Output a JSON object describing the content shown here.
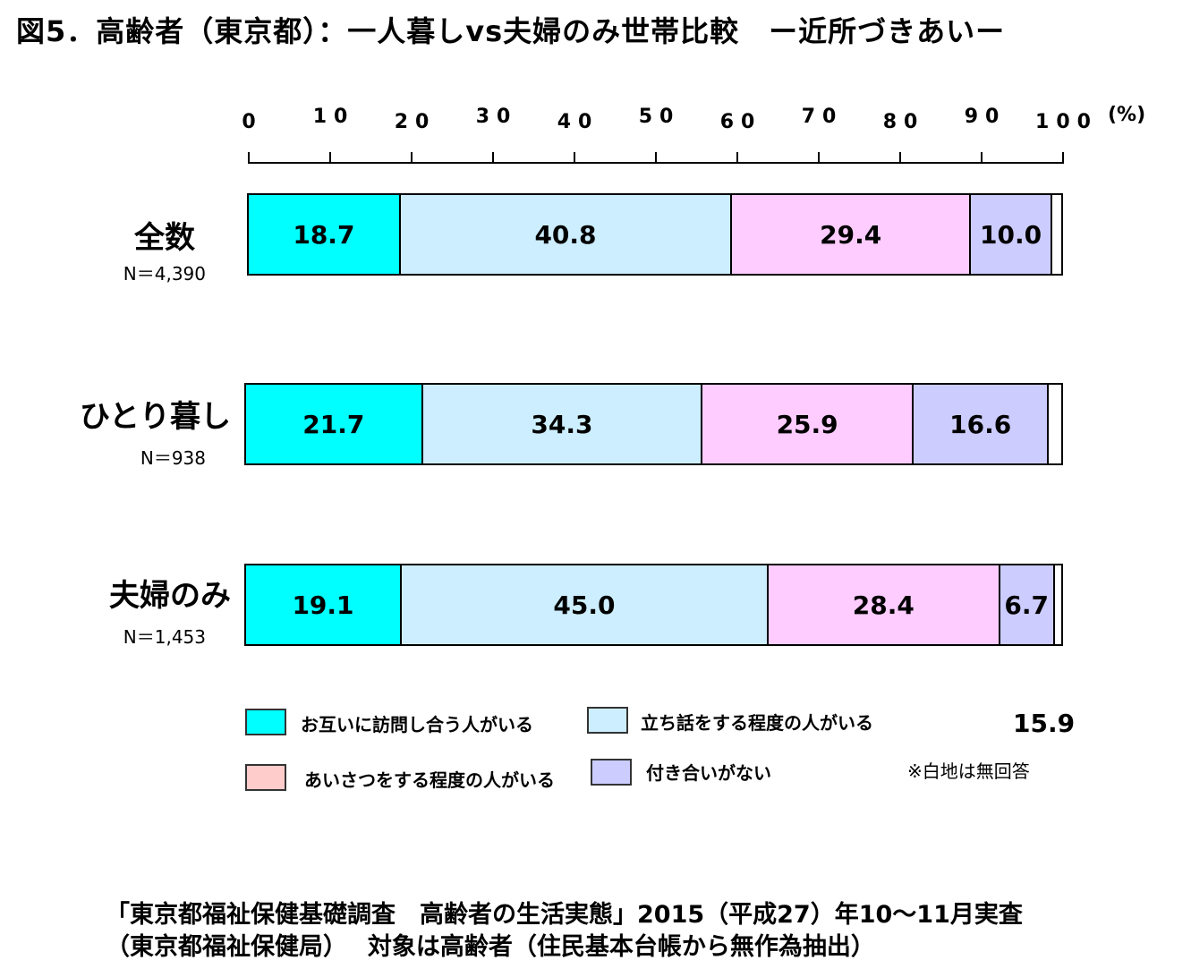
{
  "title": "図5．高齢者（東京都）：一人暮しvs夫婦のみ世帯比較　ー近所づきあいー",
  "chart_data": {
    "type": "bar",
    "orientation": "horizontal-stacked-100",
    "xlim": [
      0,
      100
    ],
    "x_ticks": [
      "0",
      "10",
      "20",
      "30",
      "40",
      "50",
      "60",
      "70",
      "80",
      "90",
      "100"
    ],
    "x_unit": "(%)",
    "categories": [
      "全数",
      "ひとり暮し",
      "夫婦のみ"
    ],
    "sample_sizes": [
      "N＝4,390",
      "N＝938",
      "N＝1,453"
    ],
    "series": [
      {
        "name": "お互いに訪問し合う人がいる",
        "color": "#00ffff",
        "values": [
          18.7,
          21.7,
          19.1
        ]
      },
      {
        "name": "立ち話をする程度の人がいる",
        "color": "#cdeeff",
        "values": [
          40.8,
          34.3,
          45.0
        ]
      },
      {
        "name": "あいさつをする程度の人がいる",
        "color": "#ffccff",
        "values": [
          29.4,
          25.9,
          28.4
        ]
      },
      {
        "name": "付き合いがない",
        "color": "#ccccff",
        "values": [
          10.0,
          16.6,
          6.7
        ]
      }
    ],
    "data_labels": [
      [
        "18.7",
        "40.8",
        "29.4",
        "10.0"
      ],
      [
        "21.7",
        "34.3",
        "25.9",
        "16.6"
      ],
      [
        "19.1",
        "45.0",
        "28.4",
        "6.7"
      ]
    ],
    "legend_swatch_colors": [
      "#00ffff",
      "#cdeeff",
      "#ffcccc",
      "#ccccff"
    ],
    "stray_value": "15.9",
    "note": "※白地は無回答"
  },
  "source": {
    "line1": "「東京都福祉保健基礎調査　高齢者の生活実態」2015（平成27）年10～11月実査",
    "line2": "（東京都福祉保健局）　 対象は高齢者（住民基本台帳から無作為抽出）"
  }
}
